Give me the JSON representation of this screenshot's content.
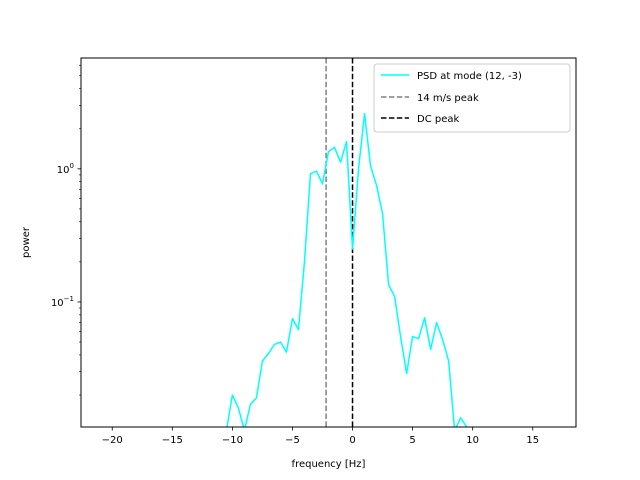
{
  "chart_data": {
    "type": "line",
    "title": "",
    "xlabel": "frequency [Hz]",
    "ylabel": "power",
    "xlim": [
      -22.6,
      18.6
    ],
    "ylim": [
      0.0115,
      6.8
    ],
    "y_scale": "log",
    "grid": false,
    "legend_position": "top-right",
    "x_ticks": [
      -20,
      -15,
      -10,
      -5,
      0,
      5,
      10,
      15
    ],
    "x_tick_labels": [
      "−20",
      "−15",
      "−10",
      "−5",
      "0",
      "5",
      "10",
      "15"
    ],
    "y_major_ticks": [
      {
        "value": 0.1,
        "base": "10",
        "exp": "−1"
      },
      {
        "value": 1,
        "base": "10",
        "exp": "0"
      }
    ],
    "series": [
      {
        "name": "PSD at mode (12, -3)",
        "color": "#00ffff",
        "style": "solid",
        "x": [
          -10.5,
          -10.0,
          -9.5,
          -9.0,
          -8.5,
          -8.0,
          -7.5,
          -7.0,
          -6.5,
          -6.0,
          -5.5,
          -5.0,
          -4.5,
          -4.0,
          -3.5,
          -3.0,
          -2.5,
          -2.0,
          -1.5,
          -1.0,
          -0.5,
          0.0,
          0.5,
          1.0,
          1.5,
          2.0,
          2.5,
          3.0,
          3.5,
          4.0,
          4.5,
          5.0,
          5.5,
          6.0,
          6.5,
          7.0,
          7.5,
          8.0,
          8.5,
          9.0,
          9.5,
          10.0
        ],
        "y": [
          0.0108,
          0.02,
          0.016,
          0.0108,
          0.017,
          0.019,
          0.036,
          0.041,
          0.048,
          0.05,
          0.042,
          0.075,
          0.062,
          0.2,
          0.92,
          0.96,
          0.77,
          1.35,
          1.45,
          1.12,
          1.6,
          0.25,
          1.0,
          2.6,
          1.05,
          0.75,
          0.46,
          0.135,
          0.11,
          0.055,
          0.029,
          0.055,
          0.053,
          0.076,
          0.044,
          0.07,
          0.052,
          0.036,
          0.0108,
          0.0135,
          0.0115,
          0.0108
        ]
      }
    ],
    "vlines": [
      {
        "name": "14 m/s peak",
        "x": -2.2,
        "color": "#808080",
        "style": "dashed"
      },
      {
        "name": "DC peak",
        "x": 0.0,
        "color": "#000000",
        "style": "dashed"
      }
    ]
  }
}
